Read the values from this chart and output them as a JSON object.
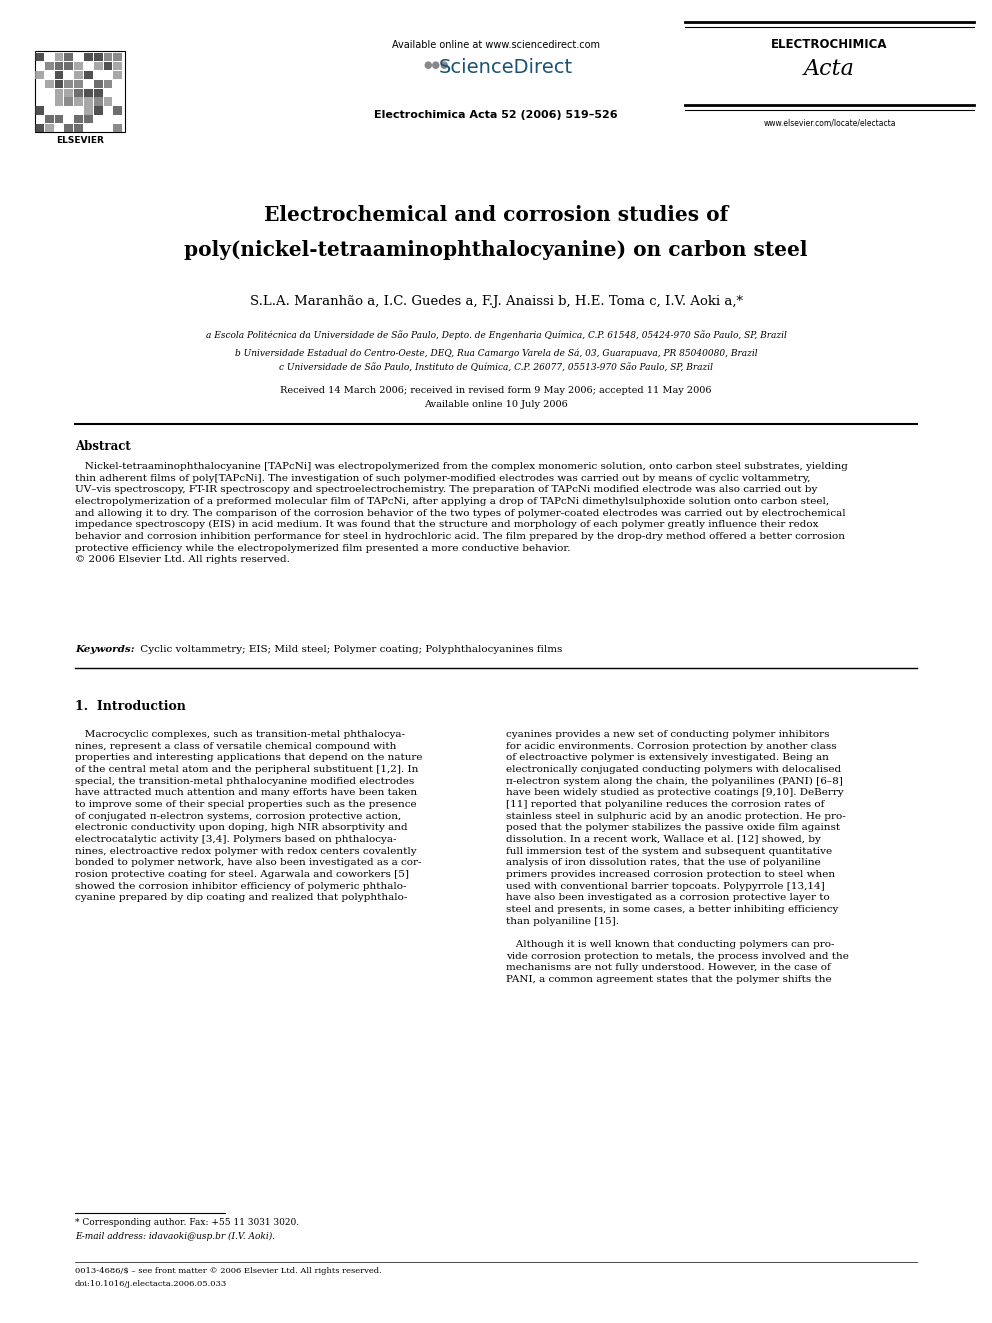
{
  "page_width": 9.92,
  "page_height": 13.23,
  "bg_color": "#ffffff",
  "header_available": "Available online at www.sciencedirect.com",
  "header_sciencedirect": "●●● ScienceDirect",
  "header_journal_ref": "Electrochimica Acta 52 (2006) 519–526",
  "header_electrochimica": "ELECTROCHIMICA",
  "header_acta": "Acta",
  "header_website": "www.elsevier.com/locate/electacta",
  "header_elsevier": "ELSEVIER",
  "title_line1": "Electrochemical and corrosion studies of",
  "title_line2": "poly(nickel-tetraaminophthalocyanine) on carbon steel",
  "authors": "S.L.A. Maranhão a, I.C. Guedes a, F.J. Anaissi b, H.E. Toma c, I.V. Aoki a,*",
  "affil_a": "a Escola Politécnica da Universidade de São Paulo, Depto. de Engenharia Química, C.P. 61548, 05424-970 São Paulo, SP, Brazil",
  "affil_b": "b Universidade Estadual do Centro-Oeste, DEQ, Rua Camargo Varela de Sá, 03, Guarapuava, PR 85040080, Brazil",
  "affil_c": "c Universidade de São Paulo, Instituto de Química, C.P. 26077, 05513-970 São Paulo, SP, Brazil",
  "received": "Received 14 March 2006; received in revised form 9 May 2006; accepted 11 May 2006",
  "available_online": "Available online 10 July 2006",
  "abstract_title": "Abstract",
  "abstract_indent": "   Nickel-tetraaminophthalocyanine [TAPcNi] was electropolymerized from the complex monomeric solution, onto carbon steel substrates, yielding\nthin adherent films of poly[TAPcNi]. The investigation of such polymer-modified electrodes was carried out by means of cyclic voltammetry,\nUV–vis spectroscopy, FT-IR spectroscopy and spectroelectrochemistry. The preparation of TAPcNi modified electrode was also carried out by\nelectropolymerization of a preformed molecular film of TAPcNi, after applying a drop of TAPcNi dimethylsulphoxide solution onto carbon steel,\nand allowing it to dry. The comparison of the corrosion behavior of the two types of polymer-coated electrodes was carried out by electrochemical\nimpedance spectroscopy (EIS) in acid medium. It was found that the structure and morphology of each polymer greatly influence their redox\nbehavior and corrosion inhibition performance for steel in hydrochloric acid. The film prepared by the drop-dry method offered a better corrosion\nprotective efficiency while the electropolymerized film presented a more conductive behavior.\n© 2006 Elsevier Ltd. All rights reserved.",
  "keywords_label": "Keywords:",
  "keywords_text": " Cyclic voltammetry; EIS; Mild steel; Polymer coating; Polyphthalocyanines films",
  "section1_title": "1.  Introduction",
  "col1_text": "   Macrocyclic complexes, such as transition-metal phthalocya-\nnines, represent a class of versatile chemical compound with\nproperties and interesting applications that depend on the nature\nof the central metal atom and the peripheral substituent [1,2]. In\nspecial, the transition-metal phthalocyanine modified electrodes\nhave attracted much attention and many efforts have been taken\nto improve some of their special properties such as the presence\nof conjugated π-electron systems, corrosion protective action,\nelectronic conductivity upon doping, high NIR absorptivity and\nelectrocatalytic activity [3,4]. Polymers based on phthalocya-\nnines, electroactive redox polymer with redox centers covalently\nbonded to polymer network, have also been investigated as a cor-\nrosion protective coating for steel. Agarwala and coworkers [5]\nshowed the corrosion inhibitor efficiency of polymeric phthalo-\ncyanine prepared by dip coating and realized that polyphthalo-",
  "col2_text": "cyanines provides a new set of conducting polymer inhibitors\nfor acidic environments. Corrosion protection by another class\nof electroactive polymer is extensively investigated. Being an\nelectronically conjugated conducting polymers with delocalised\nπ-electron system along the chain, the polyanilines (PANI) [6–8]\nhave been widely studied as protective coatings [9,10]. DeBerry\n[11] reported that polyaniline reduces the corrosion rates of\nstainless steel in sulphuric acid by an anodic protection. He pro-\nposed that the polymer stabilizes the passive oxide film against\ndissolution. In a recent work, Wallace et al. [12] showed, by\nfull immersion test of the system and subsequent quantitative\nanalysis of iron dissolution rates, that the use of polyaniline\nprimers provides increased corrosion protection to steel when\nused with conventional barrier topcoats. Polypyrrole [13,14]\nhave also been investigated as a corrosion protective layer to\nsteel and presents, in some cases, a better inhibiting efficiency\nthan polyaniline [15].\n\n   Although it is well known that conducting polymers can pro-\nvide corrosion protection to metals, the process involved and the\nmechanisms are not fully understood. However, in the case of\nPANI, a common agreement states that the polymer shifts the",
  "footnote_line": "* Corresponding author. Fax: +55 11 3031 3020.",
  "footnote_email": "E-mail address: idavaoki@usp.br (I.V. Aoki).",
  "footer_issn": "0013-4686/$ – see front matter © 2006 Elsevier Ltd. All rights reserved.",
  "footer_doi": "doi:10.1016/j.electacta.2006.05.033"
}
